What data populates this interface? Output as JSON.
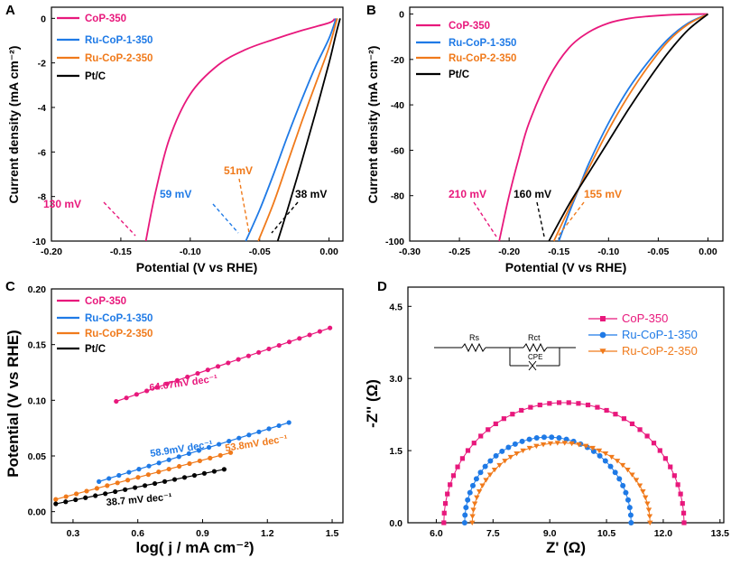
{
  "colors": {
    "cop350": "#e8187c",
    "ru1": "#1f7ae6",
    "ru2": "#f07a1b",
    "ptc": "#000000"
  },
  "chart_data": [
    {
      "id": "A",
      "type": "line",
      "panel_label": "A",
      "xlabel": "Potential (V vs RHE)",
      "ylabel": "Current density (mA cm⁻²)",
      "xlim": [
        -0.2,
        0.01
      ],
      "ylim": [
        -10,
        0.5
      ],
      "xticks": [
        "-0.20",
        "-0.15",
        "-0.10",
        "-0.05",
        "0.00"
      ],
      "xtick_values": [
        -0.2,
        -0.15,
        -0.1,
        -0.05,
        0.0
      ],
      "yticks": [
        "0",
        "-2",
        "-4",
        "-6",
        "-8",
        "-10"
      ],
      "ytick_values": [
        0,
        -2,
        -4,
        -6,
        -8,
        -10
      ],
      "series": [
        {
          "name": "CoP-350",
          "color": "#e8187c",
          "points": [
            [
              -0.132,
              -10
            ],
            [
              -0.125,
              -7.8
            ],
            [
              -0.115,
              -5.4
            ],
            [
              -0.1,
              -3.4
            ],
            [
              -0.08,
              -2.1
            ],
            [
              -0.06,
              -1.4
            ],
            [
              -0.04,
              -0.95
            ],
            [
              -0.02,
              -0.55
            ],
            [
              0.0,
              -0.2
            ],
            [
              0.004,
              -0.02
            ]
          ]
        },
        {
          "name": "Ru-CoP-1-350",
          "color": "#1f7ae6",
          "points": [
            [
              -0.06,
              -10
            ],
            [
              -0.05,
              -8.6
            ],
            [
              -0.04,
              -7.0
            ],
            [
              -0.03,
              -5.3
            ],
            [
              -0.02,
              -3.7
            ],
            [
              -0.01,
              -2.2
            ],
            [
              0.0,
              -0.9
            ],
            [
              0.005,
              0.0
            ]
          ]
        },
        {
          "name": "Ru-CoP-2-350",
          "color": "#f07a1b",
          "points": [
            [
              -0.051,
              -10
            ],
            [
              -0.04,
              -8.3
            ],
            [
              -0.03,
              -6.5
            ],
            [
              -0.02,
              -4.7
            ],
            [
              -0.01,
              -3.0
            ],
            [
              0.0,
              -1.3
            ],
            [
              0.005,
              -0.2
            ],
            [
              0.006,
              0.0
            ]
          ]
        },
        {
          "name": "Pt/C",
          "color": "#000000",
          "points": [
            [
              -0.037,
              -10
            ],
            [
              -0.03,
              -8.6
            ],
            [
              -0.02,
              -6.5
            ],
            [
              -0.01,
              -4.3
            ],
            [
              0.0,
              -2.0
            ],
            [
              0.005,
              -0.7
            ],
            [
              0.008,
              0.0
            ]
          ]
        }
      ],
      "annotations": [
        {
          "text": "130 mV",
          "color": "#e8187c",
          "value": -0.132
        },
        {
          "text": "59 mV",
          "color": "#1f7ae6",
          "value": -0.06
        },
        {
          "text": "51mV",
          "color": "#f07a1b",
          "value": -0.051
        },
        {
          "text": "38 mV",
          "color": "#000000",
          "value": -0.037
        }
      ]
    },
    {
      "id": "B",
      "type": "line",
      "panel_label": "B",
      "xlabel": "Potential (V vs RHE)",
      "ylabel": "Current density (mA cm⁻²)",
      "xlim": [
        -0.3,
        0.015
      ],
      "ylim": [
        -100,
        3
      ],
      "xticks": [
        "-0.30",
        "-0.25",
        "-0.20",
        "-0.15",
        "-0.10",
        "-0.05",
        "0.00"
      ],
      "xtick_values": [
        -0.3,
        -0.25,
        -0.2,
        -0.15,
        -0.1,
        -0.05,
        0.0
      ],
      "yticks": [
        "0",
        "-20",
        "-40",
        "-60",
        "-80",
        "-100"
      ],
      "ytick_values": [
        0,
        -20,
        -40,
        -60,
        -80,
        -100
      ],
      "series": [
        {
          "name": "CoP-350",
          "color": "#e8187c",
          "points": [
            [
              -0.21,
              -100
            ],
            [
              -0.2,
              -80
            ],
            [
              -0.19,
              -63
            ],
            [
              -0.18,
              -48
            ],
            [
              -0.16,
              -28
            ],
            [
              -0.14,
              -15
            ],
            [
              -0.12,
              -8
            ],
            [
              -0.1,
              -4
            ],
            [
              -0.08,
              -2
            ],
            [
              -0.06,
              -1
            ],
            [
              -0.04,
              -0.4
            ],
            [
              -0.02,
              -0.1
            ],
            [
              0.0,
              0.0
            ]
          ]
        },
        {
          "name": "Ru-CoP-1-350",
          "color": "#1f7ae6",
          "points": [
            [
              -0.15,
              -100
            ],
            [
              -0.14,
              -88
            ],
            [
              -0.13,
              -77
            ],
            [
              -0.12,
              -66
            ],
            [
              -0.1,
              -48
            ],
            [
              -0.08,
              -33
            ],
            [
              -0.06,
              -21
            ],
            [
              -0.04,
              -11
            ],
            [
              -0.02,
              -4
            ],
            [
              0.0,
              0.0
            ]
          ]
        },
        {
          "name": "Ru-CoP-2-350",
          "color": "#f07a1b",
          "points": [
            [
              -0.155,
              -100
            ],
            [
              -0.14,
              -86
            ],
            [
              -0.12,
              -68
            ],
            [
              -0.1,
              -51
            ],
            [
              -0.08,
              -36
            ],
            [
              -0.06,
              -23
            ],
            [
              -0.04,
              -12
            ],
            [
              -0.02,
              -4.5
            ],
            [
              0.0,
              0.0
            ]
          ]
        },
        {
          "name": "Pt/C",
          "color": "#000000",
          "points": [
            [
              -0.16,
              -100
            ],
            [
              -0.14,
              -84
            ],
            [
              -0.12,
              -70
            ],
            [
              -0.1,
              -56
            ],
            [
              -0.08,
              -42
            ],
            [
              -0.06,
              -29
            ],
            [
              -0.04,
              -17
            ],
            [
              -0.02,
              -7
            ],
            [
              0.0,
              0.0
            ]
          ]
        }
      ],
      "annotations": [
        {
          "text": "210 mV",
          "color": "#e8187c",
          "value": -0.21
        },
        {
          "text": "160 mV",
          "color": "#000000",
          "value": -0.16
        },
        {
          "text": "155 mV",
          "color": "#f07a1b",
          "value": -0.155
        }
      ]
    },
    {
      "id": "C",
      "type": "scatter",
      "panel_label": "C",
      "xlabel": "log( j / mA cm⁻²)",
      "ylabel": "Potential (V vs RHE)",
      "xlim": [
        0.2,
        1.55
      ],
      "ylim": [
        -0.01,
        0.2
      ],
      "xticks": [
        "0.3",
        "0.6",
        "0.9",
        "1.2",
        "1.5"
      ],
      "xtick_values": [
        0.3,
        0.6,
        0.9,
        1.2,
        1.5
      ],
      "yticks": [
        "0.00",
        "0.05",
        "0.10",
        "0.15",
        "0.20"
      ],
      "ytick_values": [
        0,
        0.05,
        0.1,
        0.15,
        0.2
      ],
      "series": [
        {
          "name": "CoP-350",
          "color": "#e8187c",
          "x_start": 0.5,
          "x_end": 1.49,
          "y_start": 0.099,
          "y_end": 0.165,
          "n": 22,
          "label": "64.07mV dec⁻¹"
        },
        {
          "name": "Ru-CoP-1-350",
          "color": "#1f7ae6",
          "x_start": 0.42,
          "x_end": 1.3,
          "y_start": 0.027,
          "y_end": 0.08,
          "n": 20,
          "label": "58.9mV dec⁻¹"
        },
        {
          "name": "Ru-CoP-2-350",
          "color": "#f07a1b",
          "x_start": 0.22,
          "x_end": 1.03,
          "y_start": 0.011,
          "y_end": 0.053,
          "n": 18,
          "label": "53.8mV dec⁻¹"
        },
        {
          "name": "Pt/C",
          "color": "#000000",
          "x_start": 0.22,
          "x_end": 1.0,
          "y_start": 0.007,
          "y_end": 0.038,
          "n": 18,
          "label": "38.7 mV dec⁻¹"
        }
      ]
    },
    {
      "id": "D",
      "type": "scatter",
      "panel_label": "D",
      "xlabel": "Z' (Ω)",
      "ylabel": "-Z'' (Ω)",
      "xlim": [
        5.25,
        13.6
      ],
      "ylim": [
        0,
        4.9
      ],
      "xticks": [
        "6.0",
        "7.5",
        "9.0",
        "10.5",
        "12.0",
        "13.5"
      ],
      "xtick_values": [
        6,
        7.5,
        9,
        10.5,
        12,
        13.5
      ],
      "yticks": [
        "0.0",
        "1.5",
        "3.0",
        "4.5"
      ],
      "ytick_values": [
        0,
        1.5,
        3,
        4.5
      ],
      "circuit": {
        "r1": "Rs",
        "r2": "Rct",
        "c": "CPE"
      },
      "series": [
        {
          "name": "CoP-350",
          "color": "#e8187c",
          "marker": "square",
          "rs": 6.2,
          "rend": 12.55,
          "peak": 2.5,
          "n": 40
        },
        {
          "name": "Ru-CoP-1-350",
          "color": "#1f7ae6",
          "marker": "circle",
          "rs": 6.75,
          "rend": 11.15,
          "peak": 1.78,
          "n": 36
        },
        {
          "name": "Ru-CoP-2-350",
          "color": "#f07a1b",
          "marker": "triangle",
          "rs": 6.95,
          "rend": 11.65,
          "peak": 1.66,
          "n": 40
        }
      ]
    }
  ]
}
